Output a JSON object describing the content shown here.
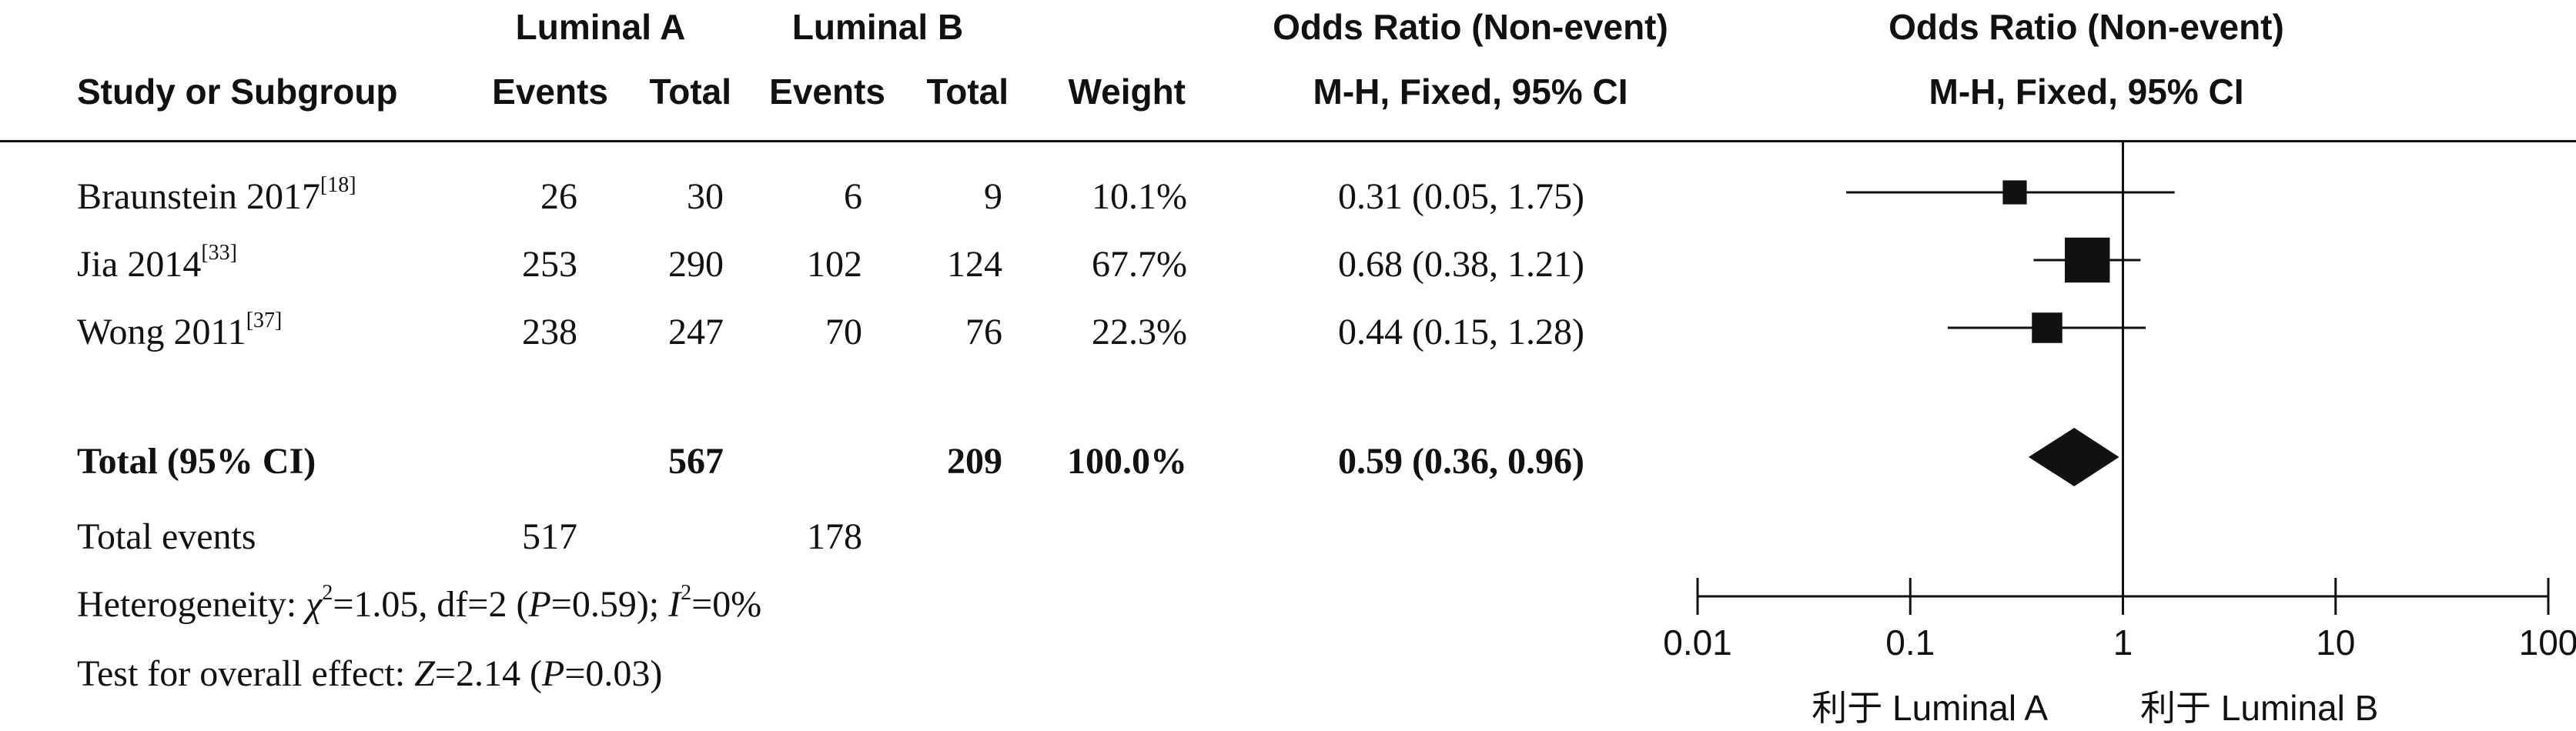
{
  "columns": {
    "group_a": "Luminal A",
    "group_b": "Luminal B",
    "or_title": "Odds Ratio (Non-event)",
    "or_method": "M-H, Fixed, 95% CI",
    "plot_title": "Odds Ratio (Non-event)",
    "plot_method": "M-H, Fixed, 95% CI",
    "study": "Study or Subgroup",
    "events_a": "Events",
    "total_a": "Total",
    "events_b": "Events",
    "total_b": "Total",
    "weight": "Weight"
  },
  "studies": [
    {
      "name": "Braunstein 2017",
      "ref": "[18]",
      "events_a": "26",
      "total_a": "30",
      "events_b": "6",
      "total_b": "9",
      "weight": "10.1%",
      "or_text": "0.31 (0.05, 1.75)"
    },
    {
      "name": "Jia 2014",
      "ref": "[33]",
      "events_a": "253",
      "total_a": "290",
      "events_b": "102",
      "total_b": "124",
      "weight": "67.7%",
      "or_text": "0.68 (0.38, 1.21)"
    },
    {
      "name": "Wong 2011",
      "ref": "[37]",
      "events_a": "238",
      "total_a": "247",
      "events_b": "70",
      "total_b": "76",
      "weight": "22.3%",
      "or_text": "0.44 (0.15, 1.28)"
    }
  ],
  "total": {
    "label": "Total (95% CI)",
    "total_a": "567",
    "total_b": "209",
    "weight": "100.0%",
    "or_text": "0.59 (0.36, 0.96)"
  },
  "total_events": {
    "label": "Total events",
    "events_a": "517",
    "events_b": "178"
  },
  "heterogeneity": {
    "prefix": "Heterogeneity: ",
    "chi": "χ",
    "sq": "2",
    "chi_val": "=1.05, df=2 (",
    "p": "P",
    "p_val": "=0.59); ",
    "i": "I",
    "i_val": "=0%"
  },
  "overall": {
    "prefix": "Test for overall effect: ",
    "z": "Z",
    "z_val": "=2.14 (",
    "p": "P",
    "p_val": "=0.03)"
  },
  "axis": {
    "ticks": [
      "0.01",
      "0.1",
      "1",
      "10",
      "100"
    ],
    "favours_left": "利于 Luminal A",
    "favours_right": "利于 Luminal B"
  },
  "chart_data": {
    "type": "scatter",
    "scale": "log",
    "xlim": [
      0.01,
      100
    ],
    "tick_values": [
      0.01,
      0.1,
      1,
      10,
      100
    ],
    "null_line": 1,
    "studies": [
      {
        "or": 0.31,
        "lo": 0.05,
        "hi": 1.75,
        "weight": 10.1
      },
      {
        "or": 0.68,
        "lo": 0.38,
        "hi": 1.21,
        "weight": 67.7
      },
      {
        "or": 0.44,
        "lo": 0.15,
        "hi": 1.28,
        "weight": 22.3
      }
    ],
    "pooled": {
      "or": 0.59,
      "lo": 0.36,
      "hi": 0.96
    }
  }
}
